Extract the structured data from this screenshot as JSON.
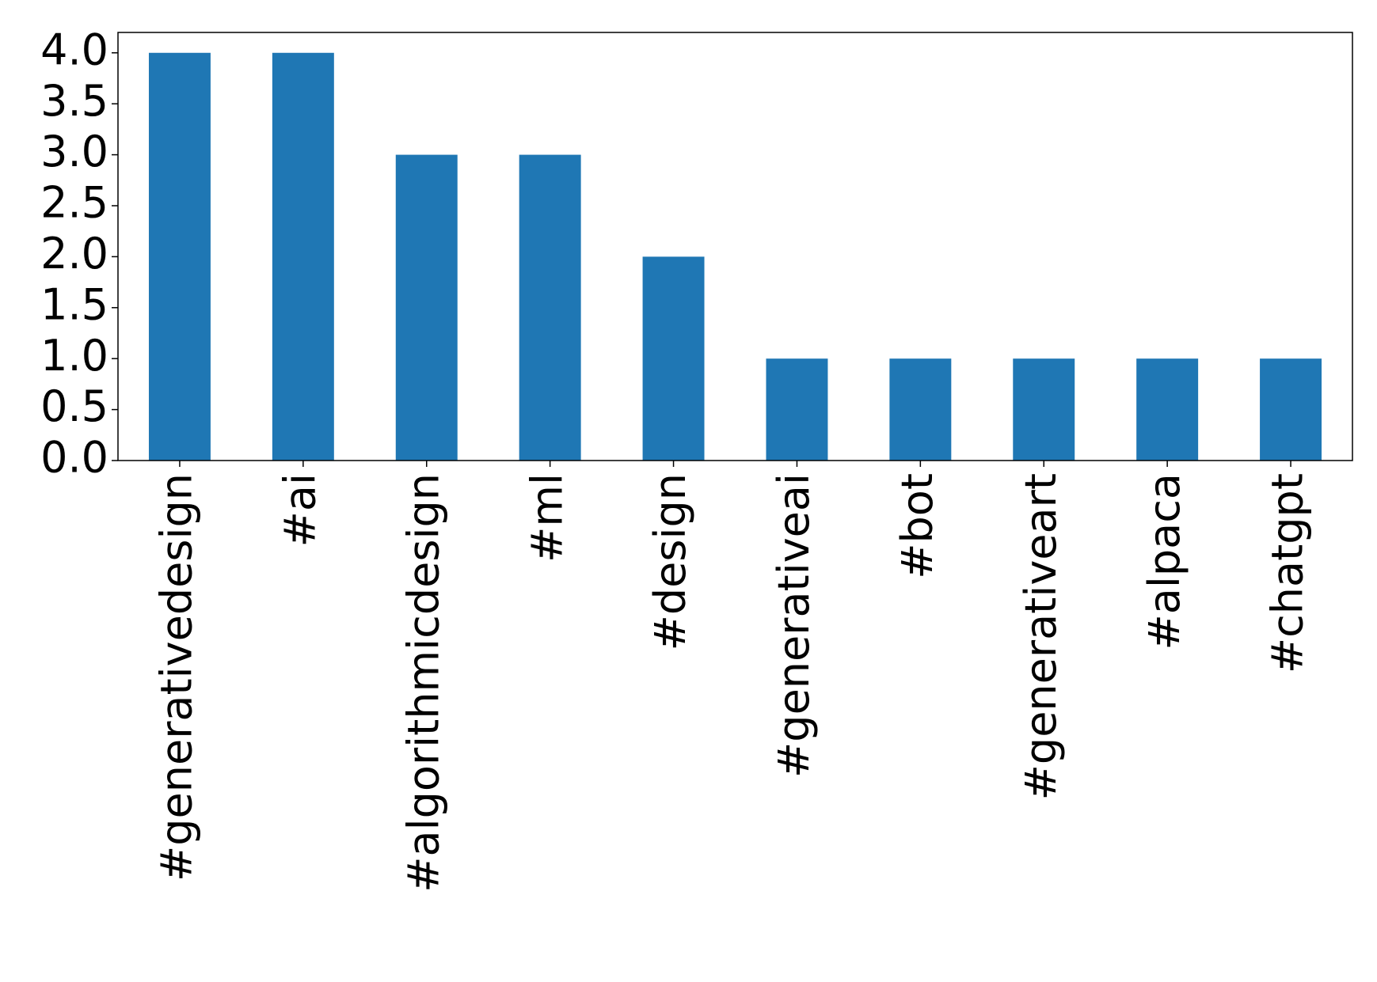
{
  "chart_data": {
    "type": "bar",
    "categories": [
      "#generativedesign",
      "#ai",
      "#algorithmicdesign",
      "#ml",
      "#design",
      "#generativeai",
      "#bot",
      "#generativeart",
      "#alpaca",
      "#chatgpt"
    ],
    "values": [
      4,
      4,
      3,
      3,
      2,
      1,
      1,
      1,
      1,
      1
    ],
    "color": "#1f77b4",
    "ylim": [
      0,
      4.2
    ],
    "yticks": [
      {
        "value": 0,
        "label": "0.0"
      },
      {
        "value": 0.5,
        "label": "0.5"
      },
      {
        "value": 1,
        "label": "1.0"
      },
      {
        "value": 1.5,
        "label": "1.5"
      },
      {
        "value": 2,
        "label": "2.0"
      },
      {
        "value": 2.5,
        "label": "2.5"
      },
      {
        "value": 3,
        "label": "3.0"
      },
      {
        "value": 3.5,
        "label": "3.5"
      },
      {
        "value": 4,
        "label": "4.0"
      }
    ],
    "grid": false
  }
}
